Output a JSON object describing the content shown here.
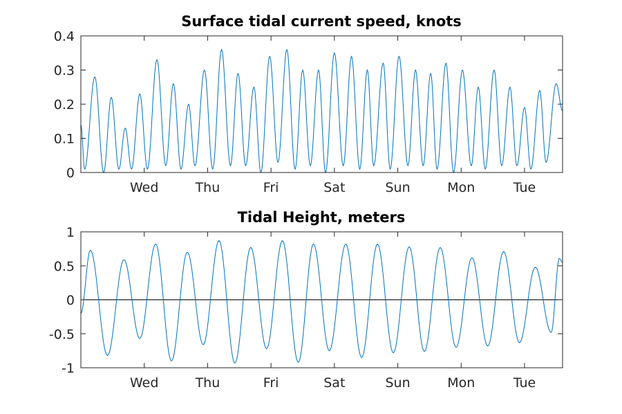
{
  "colors": {
    "series": "#0072bd",
    "axis": "#262626",
    "reference_line": "#000000"
  },
  "chart_data": [
    {
      "type": "line",
      "title": "Surface tidal current speed, knots",
      "xlabel": "",
      "ylabel": "",
      "x_unit": "days",
      "xlim": [
        0,
        7.6
      ],
      "ylim": [
        0,
        0.4
      ],
      "x_ticks": [
        {
          "value": 1,
          "label": "Wed"
        },
        {
          "value": 2,
          "label": "Thu"
        },
        {
          "value": 3,
          "label": "Fri"
        },
        {
          "value": 4,
          "label": "Sat"
        },
        {
          "value": 5,
          "label": "Sun"
        },
        {
          "value": 6,
          "label": "Mon"
        },
        {
          "value": 7,
          "label": "Tue"
        }
      ],
      "y_ticks": [
        {
          "value": 0,
          "label": "0"
        },
        {
          "value": 0.1,
          "label": "0.1"
        },
        {
          "value": 0.2,
          "label": "0.2"
        },
        {
          "value": 0.3,
          "label": "0.3"
        },
        {
          "value": 0.4,
          "label": "0.4"
        }
      ],
      "grid": false,
      "series": [
        {
          "values": [
            [
              0.0,
              0.14
            ],
            [
              0.06,
              0.01
            ],
            [
              0.22,
              0.28
            ],
            [
              0.36,
              0.0
            ],
            [
              0.48,
              0.22
            ],
            [
              0.6,
              0.01
            ],
            [
              0.7,
              0.13
            ],
            [
              0.8,
              0.01
            ],
            [
              0.93,
              0.23
            ],
            [
              1.05,
              0.01
            ],
            [
              1.2,
              0.33
            ],
            [
              1.34,
              0.02
            ],
            [
              1.46,
              0.26
            ],
            [
              1.58,
              0.01
            ],
            [
              1.7,
              0.2
            ],
            [
              1.8,
              0.02
            ],
            [
              1.95,
              0.3
            ],
            [
              2.08,
              0.01
            ],
            [
              2.22,
              0.36
            ],
            [
              2.36,
              0.02
            ],
            [
              2.48,
              0.29
            ],
            [
              2.6,
              0.02
            ],
            [
              2.73,
              0.25
            ],
            [
              2.84,
              0.0
            ],
            [
              2.98,
              0.34
            ],
            [
              3.11,
              0.03
            ],
            [
              3.25,
              0.36
            ],
            [
              3.38,
              0.01
            ],
            [
              3.5,
              0.3
            ],
            [
              3.62,
              0.02
            ],
            [
              3.75,
              0.3
            ],
            [
              3.86,
              0.0
            ],
            [
              4.0,
              0.35
            ],
            [
              4.14,
              0.02
            ],
            [
              4.27,
              0.34
            ],
            [
              4.4,
              0.01
            ],
            [
              4.52,
              0.3
            ],
            [
              4.62,
              0.02
            ],
            [
              4.77,
              0.32
            ],
            [
              4.88,
              0.01
            ],
            [
              5.02,
              0.34
            ],
            [
              5.16,
              0.02
            ],
            [
              5.28,
              0.3
            ],
            [
              5.4,
              0.02
            ],
            [
              5.52,
              0.29
            ],
            [
              5.62,
              0.01
            ],
            [
              5.76,
              0.32
            ],
            [
              5.88,
              0.0
            ],
            [
              6.02,
              0.3
            ],
            [
              6.16,
              0.02
            ],
            [
              6.27,
              0.25
            ],
            [
              6.38,
              0.01
            ],
            [
              6.52,
              0.3
            ],
            [
              6.64,
              0.02
            ],
            [
              6.77,
              0.25
            ],
            [
              6.88,
              0.02
            ],
            [
              7.0,
              0.19
            ],
            [
              7.1,
              0.01
            ],
            [
              7.24,
              0.24
            ],
            [
              7.34,
              0.03
            ],
            [
              7.5,
              0.26
            ],
            [
              7.6,
              0.18
            ]
          ]
        }
      ]
    },
    {
      "type": "line",
      "title": "Tidal Height, meters",
      "xlabel": "",
      "ylabel": "",
      "x_unit": "days",
      "xlim": [
        0,
        7.6
      ],
      "ylim": [
        -1,
        1
      ],
      "reference_line_y": 0,
      "x_ticks": [
        {
          "value": 1,
          "label": "Wed"
        },
        {
          "value": 2,
          "label": "Thu"
        },
        {
          "value": 3,
          "label": "Fri"
        },
        {
          "value": 4,
          "label": "Sat"
        },
        {
          "value": 5,
          "label": "Sun"
        },
        {
          "value": 6,
          "label": "Mon"
        },
        {
          "value": 7,
          "label": "Tue"
        }
      ],
      "y_ticks": [
        {
          "value": -1,
          "label": "-1"
        },
        {
          "value": -0.5,
          "label": "-0.5"
        },
        {
          "value": 0,
          "label": "0"
        },
        {
          "value": 0.5,
          "label": "0.5"
        },
        {
          "value": 1,
          "label": "1"
        }
      ],
      "grid": false,
      "series": [
        {
          "values": [
            [
              0.0,
              -0.2
            ],
            [
              0.15,
              0.73
            ],
            [
              0.42,
              -0.82
            ],
            [
              0.68,
              0.59
            ],
            [
              0.93,
              -0.57
            ],
            [
              1.18,
              0.82
            ],
            [
              1.43,
              -0.9
            ],
            [
              1.68,
              0.7
            ],
            [
              1.93,
              -0.66
            ],
            [
              2.18,
              0.87
            ],
            [
              2.43,
              -0.93
            ],
            [
              2.68,
              0.77
            ],
            [
              2.93,
              -0.72
            ],
            [
              3.18,
              0.87
            ],
            [
              3.43,
              -0.92
            ],
            [
              3.67,
              0.82
            ],
            [
              3.92,
              -0.75
            ],
            [
              4.18,
              0.82
            ],
            [
              4.43,
              -0.85
            ],
            [
              4.68,
              0.82
            ],
            [
              4.93,
              -0.78
            ],
            [
              5.18,
              0.78
            ],
            [
              5.42,
              -0.76
            ],
            [
              5.67,
              0.77
            ],
            [
              5.92,
              -0.7
            ],
            [
              6.17,
              0.62
            ],
            [
              6.42,
              -0.68
            ],
            [
              6.67,
              0.71
            ],
            [
              6.92,
              -0.63
            ],
            [
              7.17,
              0.48
            ],
            [
              7.42,
              -0.48
            ],
            [
              7.55,
              0.61
            ],
            [
              7.6,
              0.55
            ]
          ]
        }
      ]
    }
  ]
}
